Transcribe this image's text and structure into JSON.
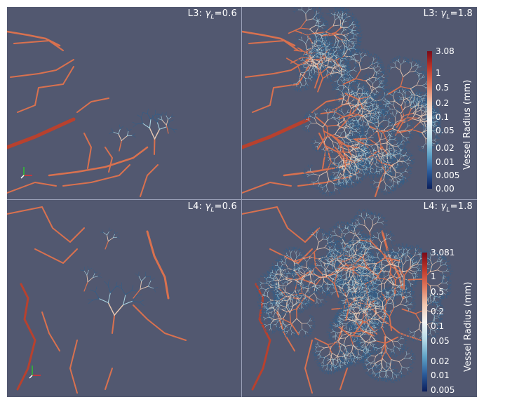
{
  "panels": [
    {
      "id": "L3-low",
      "label_prefix": "L3: ",
      "gamma_symbol": "γ",
      "gamma_sub": "L",
      "label_value": "=0.6"
    },
    {
      "id": "L3-high",
      "label_prefix": "L3: ",
      "gamma_symbol": "γ",
      "gamma_sub": "L",
      "label_value": "=1.8"
    },
    {
      "id": "L4-low",
      "label_prefix": "L4: ",
      "gamma_symbol": "γ",
      "gamma_sub": "L",
      "label_value": "=0.6"
    },
    {
      "id": "L4-high",
      "label_prefix": "L4: ",
      "gamma_symbol": "γ",
      "gamma_sub": "L",
      "label_value": "=1.8"
    }
  ],
  "colorbars": [
    {
      "title": "Vessel Radius (mm)",
      "max": "3.08",
      "ticks": [
        "1",
        "0.5",
        "0.2",
        "0.1",
        "0.05",
        "0.02",
        "0.01",
        "0.005",
        "0.00"
      ]
    },
    {
      "title": "Vessel Radius (mm)",
      "max": "3.081",
      "ticks": [
        "1",
        "0.5",
        "0.2",
        "0.1",
        "0.05",
        "0.02",
        "0.01",
        "0.005"
      ]
    }
  ],
  "colors": {
    "background": "#525870",
    "vessel_large": "#b8412e",
    "vessel_mid": "#d9714f",
    "vessel_small": "#e8c9b3",
    "vessel_micro": "#a9d3e0",
    "vessel_fine": "#2f5f8a",
    "colormap": [
      "#7a0a18",
      "#c0392b",
      "#e07a5f",
      "#f1c8b1",
      "#f5f5f5",
      "#b7dbe8",
      "#5fa3c7",
      "#2c5c9a",
      "#0b1f5c"
    ]
  },
  "icons": {
    "orientation": "axes-triad-icon"
  }
}
